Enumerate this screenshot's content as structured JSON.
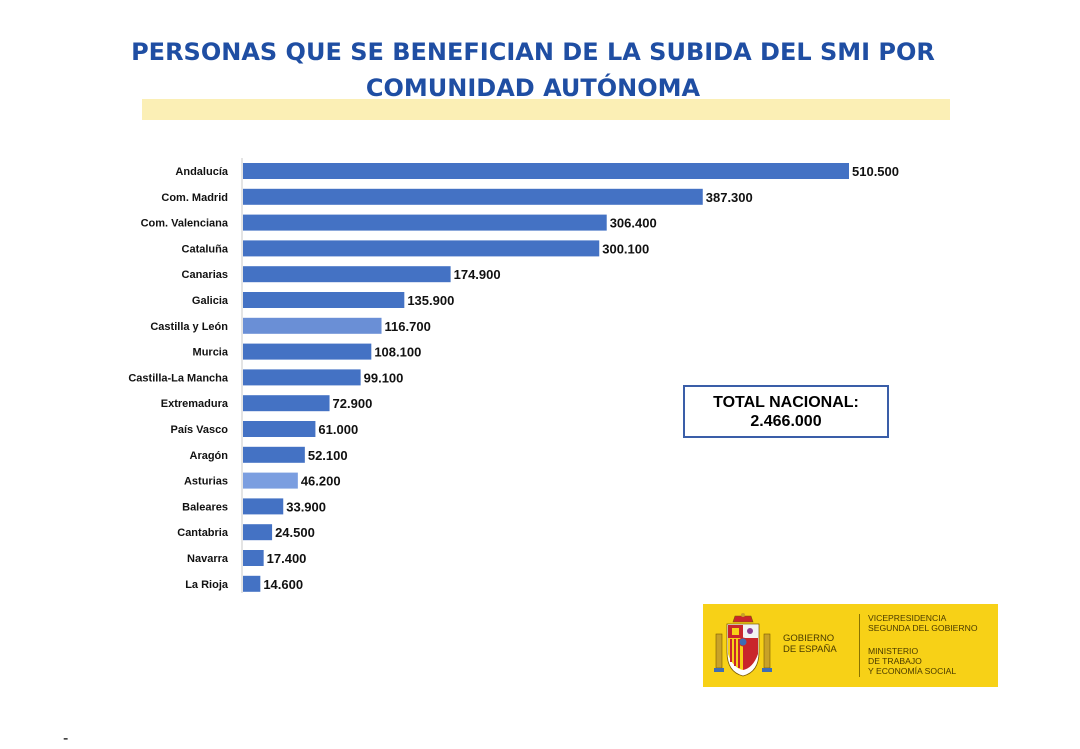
{
  "chart_data": {
    "type": "bar",
    "orientation": "horizontal",
    "title_lines": [
      "PERSONAS QUE SE BENEFICIAN DE LA SUBIDA DEL SMI POR",
      "COMUNIDAD AUTÓNOMA"
    ],
    "categories": [
      "Andalucía",
      "Com. Madrid",
      "Com. Valenciana",
      "Cataluña",
      "Canarias",
      "Galicia",
      "Castilla y León",
      "Murcia",
      "Castilla-La Mancha",
      "Extremadura",
      "País Vasco",
      "Aragón",
      "Asturias",
      "Baleares",
      "Cantabria",
      "Navarra",
      "La Rioja"
    ],
    "values": [
      510500,
      387300,
      306400,
      300100,
      174900,
      135900,
      116700,
      108100,
      99100,
      72900,
      61000,
      52100,
      46200,
      33900,
      24500,
      17400,
      14600
    ],
    "value_labels": [
      "510.500",
      "387.300",
      "306.400",
      "300.100",
      "174.900",
      "135.900",
      "116.700",
      "108.100",
      "99.100",
      "72.900",
      "61.000",
      "52.100",
      "46.200",
      "33.900",
      "24.500",
      "17.400",
      "14.600"
    ],
    "bar_colors": [
      "#4472c4",
      "#4472c4",
      "#4472c4",
      "#4472c4",
      "#4472c4",
      "#4472c4",
      "#6a8fd6",
      "#4472c4",
      "#4472c4",
      "#4472c4",
      "#4472c4",
      "#4472c4",
      "#7b9ee0",
      "#4472c4",
      "#4472c4",
      "#4472c4",
      "#4472c4"
    ],
    "xlim": [
      0,
      510500
    ],
    "grid": false,
    "legend": "none"
  },
  "total": {
    "label": "TOTAL NACIONAL:",
    "value": "2.466.000"
  },
  "logo": {
    "gobierno_lines": [
      "GOBIERNO",
      "DE ESPAÑA"
    ],
    "vice_lines": [
      "VICEPRESIDENCIA",
      "SEGUNDA DEL GOBIERNO"
    ],
    "ministerio_lines": [
      "MINISTERIO",
      "DE TRABAJO",
      "Y ECONOMÍA SOCIAL"
    ],
    "background": "#f7d117"
  },
  "footer": {
    "mark": "-"
  },
  "colors": {
    "title": "#1f4ea3",
    "title_band": "#fbefb5",
    "bar": "#4472c4"
  }
}
